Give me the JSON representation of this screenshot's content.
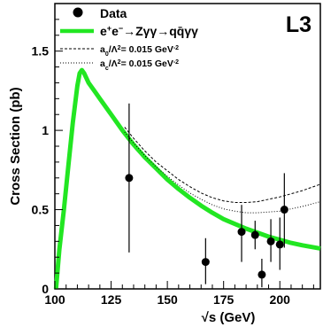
{
  "chart_data": {
    "type": "scatter",
    "experiment_label": "L3",
    "xlabel": "√s (GeV)",
    "ylabel": "Cross Section (pb)",
    "xlim": [
      100,
      218
    ],
    "ylim": [
      0,
      1.8
    ],
    "x_ticks": [
      100,
      125,
      150,
      175,
      200
    ],
    "x_tick_labels": [
      "100",
      "125",
      "150",
      "175",
      "200"
    ],
    "y_ticks": [
      0,
      0.5,
      1,
      1.5
    ],
    "y_tick_labels": [
      "0",
      "0.5",
      "1",
      "1.5"
    ],
    "grid": false,
    "legend_position": "top-left",
    "legend": [
      {
        "label": "Data",
        "style": "marker",
        "color": "#000000"
      },
      {
        "label_html": true,
        "label": "e⁺e⁻→Zγγ→qq̄γγ",
        "style": "band",
        "color": "#22e622"
      },
      {
        "label": "a0/Λ2= 0.015 GeV-2",
        "style": "dashed",
        "color": "#000000"
      },
      {
        "label": "ac/Λ2= 0.015 GeV-2",
        "style": "dotted",
        "color": "#000000"
      }
    ],
    "series": [
      {
        "name": "Data",
        "kind": "points_with_errors",
        "color": "#000000",
        "points": [
          {
            "x": 133,
            "y": 0.7,
            "ylo": 0.23,
            "yhi": 1.17
          },
          {
            "x": 167,
            "y": 0.17,
            "ylo": 0.03,
            "yhi": 0.32
          },
          {
            "x": 183,
            "y": 0.36,
            "ylo": 0.17,
            "yhi": 0.53
          },
          {
            "x": 189,
            "y": 0.34,
            "ylo": 0.25,
            "yhi": 0.43
          },
          {
            "x": 192,
            "y": 0.09,
            "ylo": 0.01,
            "yhi": 0.19
          },
          {
            "x": 196,
            "y": 0.3,
            "ylo": 0.17,
            "yhi": 0.44
          },
          {
            "x": 200,
            "y": 0.28,
            "ylo": 0.12,
            "yhi": 0.45
          },
          {
            "x": 202,
            "y": 0.5,
            "ylo": 0.26,
            "yhi": 0.73
          }
        ]
      },
      {
        "name": "e⁺e⁻→Zγγ→qq̄γγ",
        "kind": "band",
        "color": "#22e622",
        "x": [
          100.5,
          102,
          104,
          106,
          108,
          110,
          111,
          112,
          113,
          115,
          118,
          120,
          125,
          130,
          135,
          140,
          145,
          150,
          155,
          160,
          165,
          170,
          175,
          180,
          185,
          190,
          195,
          200,
          205,
          210,
          218
        ],
        "y": [
          0.0,
          0.25,
          0.5,
          0.78,
          1.05,
          1.28,
          1.36,
          1.38,
          1.36,
          1.3,
          1.24,
          1.2,
          1.1,
          1.0,
          0.91,
          0.83,
          0.76,
          0.69,
          0.63,
          0.575,
          0.525,
          0.48,
          0.44,
          0.41,
          0.38,
          0.355,
          0.33,
          0.31,
          0.29,
          0.275,
          0.255
        ]
      },
      {
        "name": "a0/Λ2= 0.015 GeV-2",
        "kind": "line",
        "dash": "dashed",
        "color": "#000000",
        "x": [
          131,
          135,
          140,
          145,
          150,
          155,
          160,
          165,
          170,
          175,
          180,
          185,
          190,
          195,
          200,
          205,
          210,
          218
        ],
        "y": [
          1.02,
          0.95,
          0.87,
          0.8,
          0.745,
          0.69,
          0.645,
          0.605,
          0.575,
          0.555,
          0.545,
          0.545,
          0.55,
          0.565,
          0.58,
          0.6,
          0.62,
          0.66
        ]
      },
      {
        "name": "ac/Λ2= 0.015 GeV-2",
        "kind": "line",
        "dash": "dotted",
        "color": "#000000",
        "x": [
          131,
          135,
          140,
          145,
          150,
          155,
          160,
          165,
          170,
          175,
          180,
          185,
          190,
          195,
          200,
          205,
          210,
          218
        ],
        "y": [
          0.99,
          0.92,
          0.84,
          0.77,
          0.71,
          0.655,
          0.605,
          0.565,
          0.53,
          0.505,
          0.49,
          0.48,
          0.48,
          0.485,
          0.49,
          0.505,
          0.52,
          0.55
        ]
      }
    ]
  }
}
